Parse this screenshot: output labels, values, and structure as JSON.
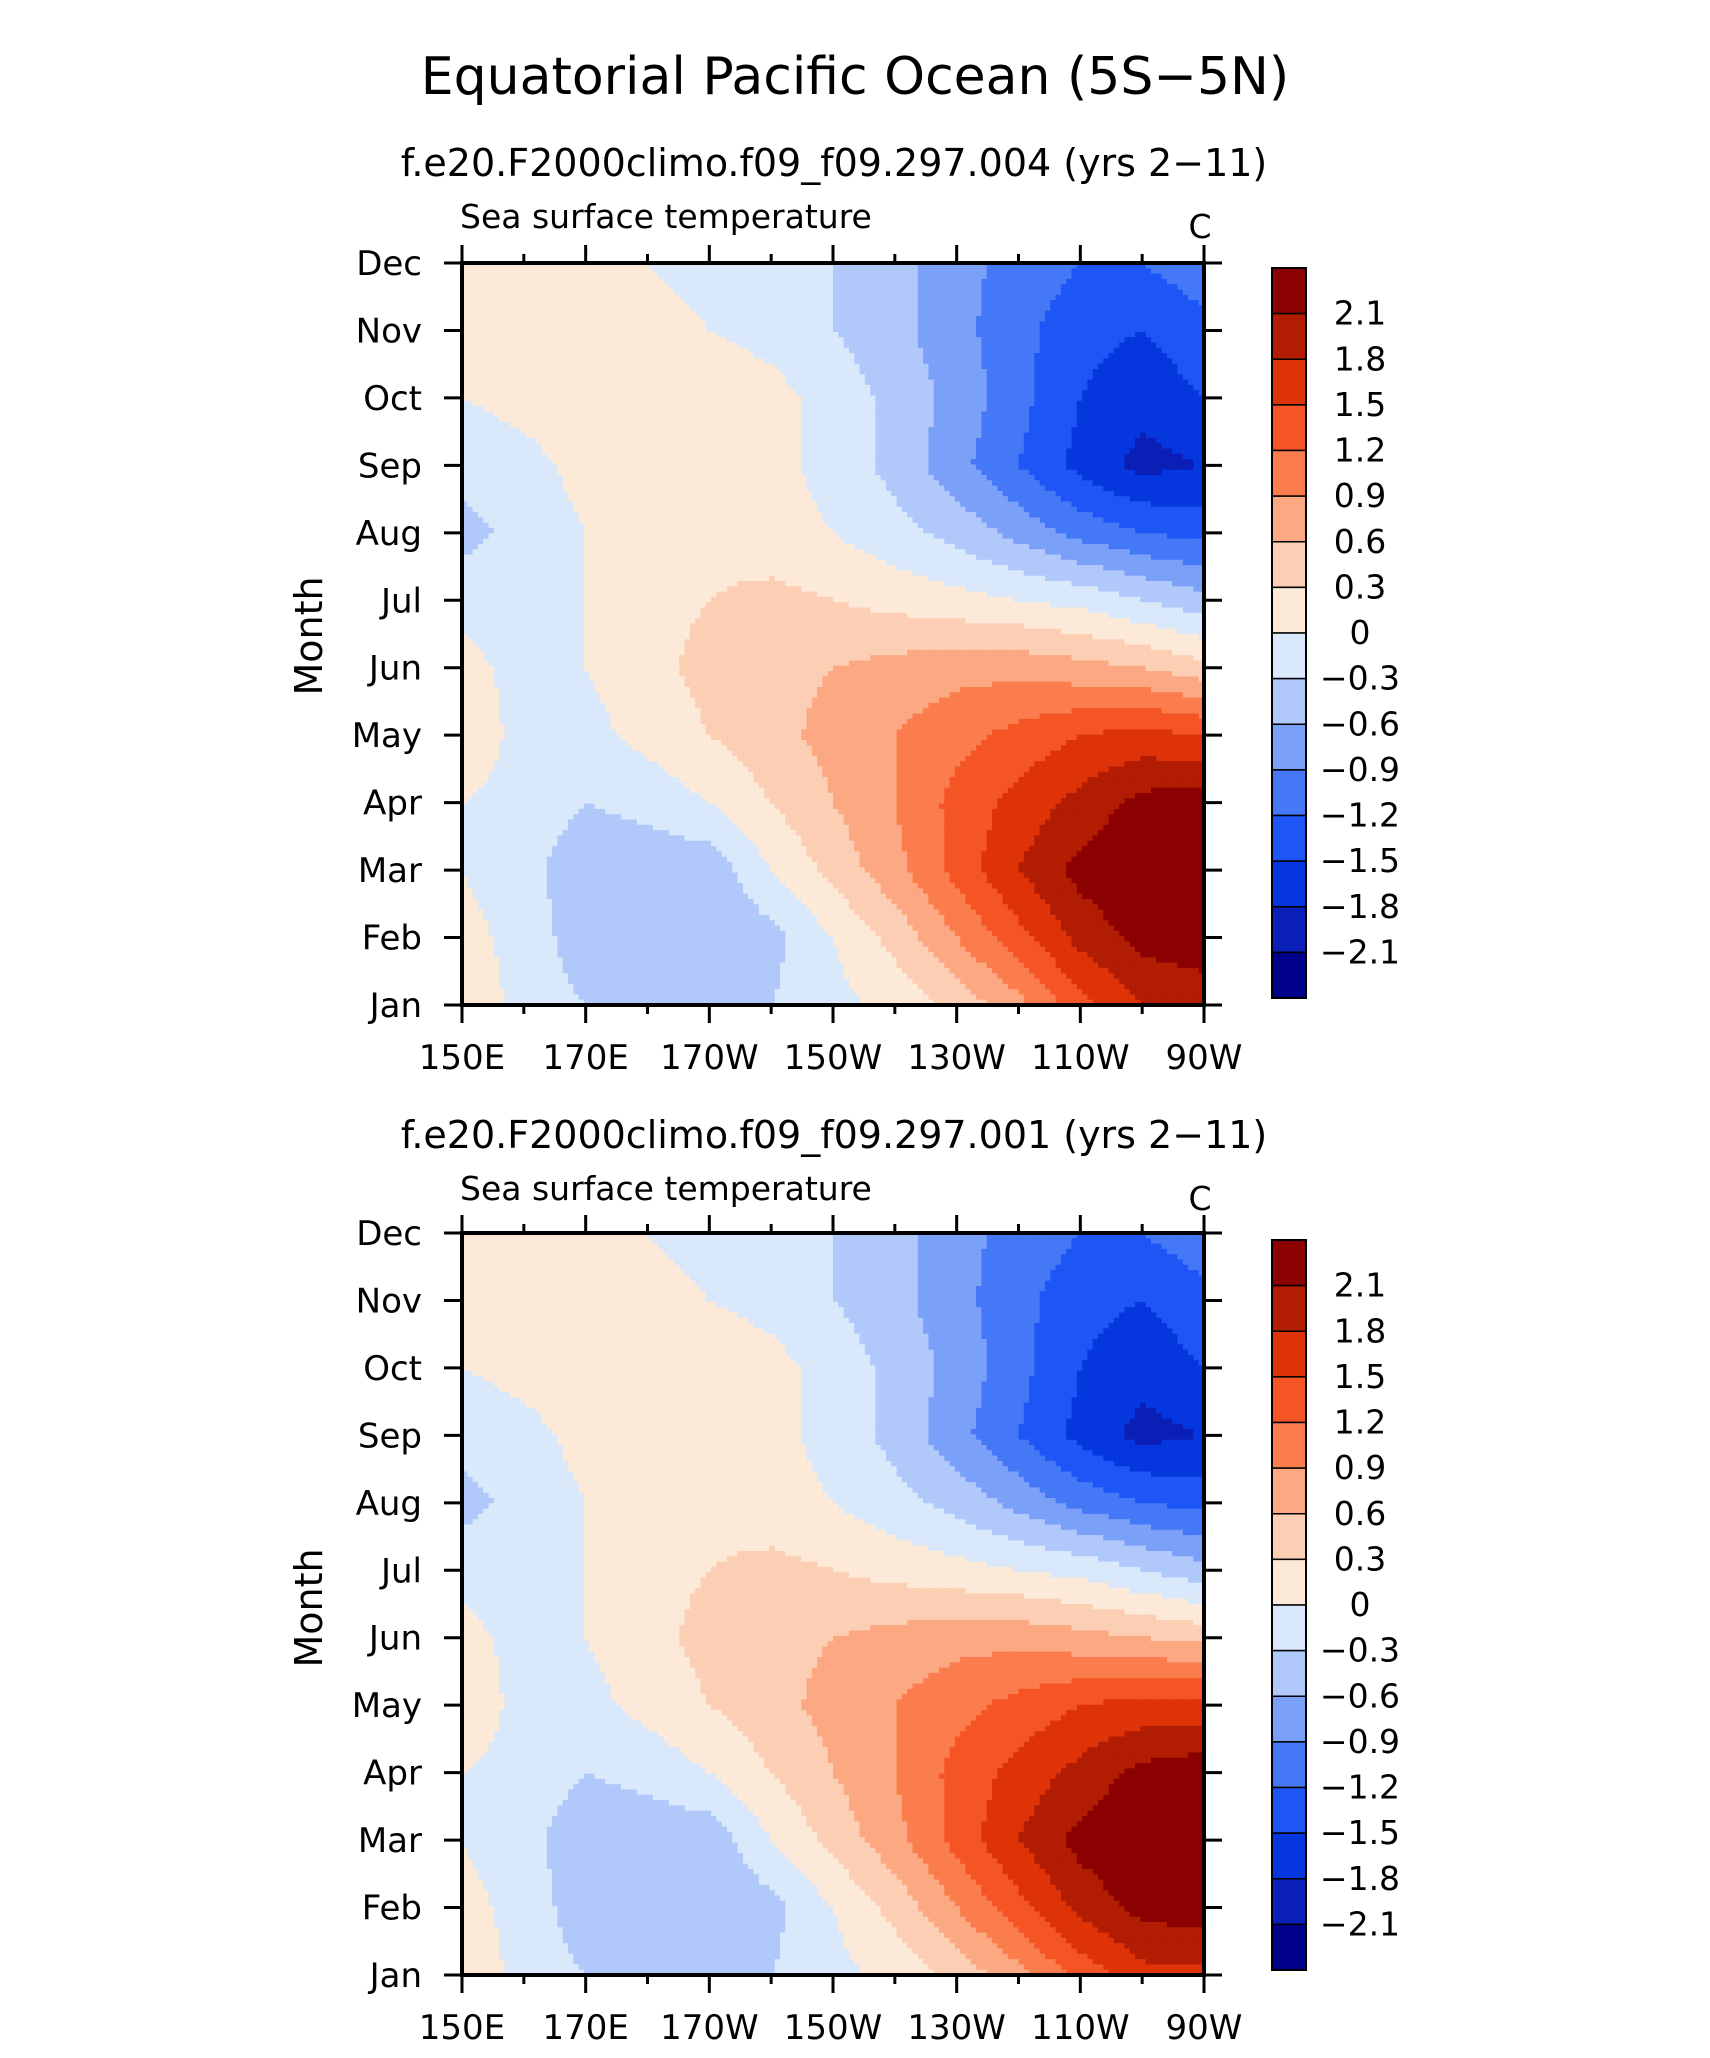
{
  "figure_title": "Equatorial Pacific Ocean (5S-5N)",
  "chart_data": [
    {
      "type": "heatmap",
      "title": "f.e20.F2000climo.f09_f09.297.004 (yrs 2-11)",
      "left_label": "Sea surface temperature",
      "units": "C",
      "ylabel": "Month",
      "xlabel": "",
      "x_ticks": [
        "150E",
        "170E",
        "170W",
        "150W",
        "130W",
        "110W",
        "90W"
      ],
      "x_range_deg_east": [
        150,
        270
      ],
      "y_ticks": [
        "Jan",
        "Feb",
        "Mar",
        "Apr",
        "May",
        "Jun",
        "Jul",
        "Aug",
        "Sep",
        "Oct",
        "Nov",
        "Dec"
      ],
      "contour_levels": [
        -2.1,
        -1.8,
        -1.5,
        -1.2,
        -0.9,
        -0.6,
        -0.3,
        0,
        0.3,
        0.6,
        0.9,
        1.2,
        1.5,
        1.8,
        2.1
      ],
      "colorbar_labels": [
        "2.1",
        "1.8",
        "1.5",
        "1.2",
        "0.9",
        "0.6",
        "0.3",
        "0",
        "-0.3",
        "-0.6",
        "-0.9",
        "-1.2",
        "-1.5",
        "-1.8",
        "-2.1"
      ],
      "grid_x_deg_east": [
        150,
        160,
        170,
        180,
        190,
        200,
        210,
        220,
        230,
        240,
        250,
        260,
        270
      ],
      "grid_months": [
        "Jan",
        "Feb",
        "Mar",
        "Apr",
        "May",
        "Jun",
        "Jul",
        "Aug",
        "Sep",
        "Oct",
        "Nov",
        "Dec"
      ],
      "values": [
        [
          0.2,
          -0.1,
          -0.3,
          -0.4,
          -0.4,
          -0.3,
          -0.1,
          0.1,
          0.4,
          0.8,
          1.4,
          1.8,
          1.8
        ],
        [
          0.1,
          -0.1,
          -0.5,
          -0.5,
          -0.6,
          -0.4,
          0.0,
          0.4,
          0.9,
          1.4,
          1.9,
          2.2,
          2.4
        ],
        [
          0.0,
          -0.2,
          -0.5,
          -0.5,
          -0.5,
          0.0,
          0.4,
          0.8,
          1.3,
          1.8,
          2.2,
          2.4,
          2.5
        ],
        [
          0.0,
          -0.1,
          -0.3,
          -0.2,
          0.0,
          0.3,
          0.6,
          0.9,
          1.3,
          1.6,
          1.9,
          2.2,
          2.3
        ],
        [
          0.2,
          -0.1,
          -0.1,
          0.1,
          0.3,
          0.5,
          0.7,
          0.9,
          1.1,
          1.3,
          1.5,
          1.6,
          1.5
        ],
        [
          0.1,
          -0.1,
          0.0,
          0.2,
          0.4,
          0.5,
          0.6,
          0.7,
          0.8,
          0.8,
          0.7,
          0.6,
          0.4
        ],
        [
          -0.1,
          -0.2,
          0.0,
          0.2,
          0.3,
          0.4,
          0.3,
          0.2,
          0.1,
          0.0,
          -0.1,
          -0.3,
          -0.5
        ],
        [
          -0.4,
          -0.2,
          0.0,
          0.2,
          0.2,
          0.1,
          0.0,
          -0.2,
          -0.4,
          -0.7,
          -1.0,
          -1.2,
          -1.3
        ],
        [
          -0.2,
          -0.1,
          0.1,
          0.2,
          0.2,
          0.1,
          -0.1,
          -0.4,
          -0.8,
          -1.2,
          -1.6,
          -1.9,
          -1.8
        ],
        [
          0.0,
          0.1,
          0.2,
          0.2,
          0.2,
          0.1,
          -0.1,
          -0.4,
          -0.7,
          -1.1,
          -1.5,
          -1.7,
          -1.5
        ],
        [
          0.1,
          0.1,
          0.2,
          0.1,
          0.0,
          -0.1,
          -0.3,
          -0.5,
          -0.8,
          -1.1,
          -1.4,
          -1.5,
          -1.3
        ],
        [
          0.2,
          0.2,
          0.1,
          0.0,
          -0.1,
          -0.2,
          -0.3,
          -0.5,
          -0.8,
          -1.0,
          -1.2,
          -1.2,
          -1.0
        ]
      ]
    },
    {
      "type": "heatmap",
      "title": "f.e20.F2000climo.f09_f09.297.001 (yrs 2-11)",
      "left_label": "Sea surface temperature",
      "units": "C",
      "ylabel": "Month",
      "xlabel": "",
      "x_ticks": [
        "150E",
        "170E",
        "170W",
        "150W",
        "130W",
        "110W",
        "90W"
      ],
      "x_range_deg_east": [
        150,
        270
      ],
      "y_ticks": [
        "Jan",
        "Feb",
        "Mar",
        "Apr",
        "May",
        "Jun",
        "Jul",
        "Aug",
        "Sep",
        "Oct",
        "Nov",
        "Dec"
      ],
      "contour_levels": [
        -2.1,
        -1.8,
        -1.5,
        -1.2,
        -0.9,
        -0.6,
        -0.3,
        0,
        0.3,
        0.6,
        0.9,
        1.2,
        1.5,
        1.8,
        2.1
      ],
      "colorbar_labels": [
        "2.1",
        "1.8",
        "1.5",
        "1.2",
        "0.9",
        "0.6",
        "0.3",
        "0",
        "-0.3",
        "-0.6",
        "-0.9",
        "-1.2",
        "-1.5",
        "-1.8",
        "-2.1"
      ],
      "grid_x_deg_east": [
        150,
        160,
        170,
        180,
        190,
        200,
        210,
        220,
        230,
        240,
        250,
        260,
        270
      ],
      "grid_months": [
        "Jan",
        "Feb",
        "Mar",
        "Apr",
        "May",
        "Jun",
        "Jul",
        "Aug",
        "Sep",
        "Oct",
        "Nov",
        "Dec"
      ],
      "values": [
        [
          0.2,
          -0.1,
          -0.3,
          -0.4,
          -0.4,
          -0.3,
          -0.1,
          0.1,
          0.4,
          0.8,
          1.3,
          1.7,
          1.7
        ],
        [
          0.1,
          -0.1,
          -0.5,
          -0.5,
          -0.6,
          -0.4,
          0.0,
          0.4,
          0.9,
          1.4,
          1.9,
          2.2,
          2.3
        ],
        [
          0.0,
          -0.2,
          -0.5,
          -0.5,
          -0.5,
          0.0,
          0.4,
          0.8,
          1.3,
          1.8,
          2.2,
          2.4,
          2.5
        ],
        [
          0.0,
          -0.1,
          -0.3,
          -0.2,
          0.0,
          0.3,
          0.6,
          0.9,
          1.3,
          1.6,
          1.9,
          2.2,
          2.3
        ],
        [
          0.2,
          -0.1,
          -0.1,
          0.1,
          0.3,
          0.5,
          0.7,
          0.9,
          1.1,
          1.3,
          1.5,
          1.6,
          1.6
        ],
        [
          0.1,
          -0.1,
          0.0,
          0.2,
          0.4,
          0.5,
          0.6,
          0.7,
          0.8,
          0.8,
          0.7,
          0.6,
          0.5
        ],
        [
          -0.1,
          -0.2,
          0.0,
          0.2,
          0.3,
          0.4,
          0.3,
          0.2,
          0.1,
          0.0,
          -0.1,
          -0.3,
          -0.5
        ],
        [
          -0.4,
          -0.2,
          0.0,
          0.2,
          0.2,
          0.1,
          0.0,
          -0.2,
          -0.4,
          -0.7,
          -1.0,
          -1.2,
          -1.3
        ],
        [
          -0.2,
          -0.1,
          0.1,
          0.2,
          0.2,
          0.1,
          -0.1,
          -0.4,
          -0.8,
          -1.2,
          -1.6,
          -1.9,
          -1.8
        ],
        [
          0.0,
          0.1,
          0.2,
          0.2,
          0.2,
          0.1,
          -0.1,
          -0.4,
          -0.7,
          -1.1,
          -1.5,
          -1.7,
          -1.5
        ],
        [
          0.1,
          0.1,
          0.2,
          0.1,
          0.0,
          -0.1,
          -0.3,
          -0.5,
          -0.8,
          -1.1,
          -1.4,
          -1.5,
          -1.3
        ],
        [
          0.2,
          0.2,
          0.1,
          0.0,
          -0.1,
          -0.2,
          -0.3,
          -0.5,
          -0.8,
          -1.0,
          -1.2,
          -1.2,
          -1.0
        ]
      ]
    }
  ],
  "colors": {
    "fills": [
      "#00008b",
      "#0a1fb6",
      "#0536de",
      "#1e55f5",
      "#4478f6",
      "#7aa0f7",
      "#b0c9fa",
      "#d9e8fb",
      "#fde9d8",
      "#fccfb4",
      "#fba883",
      "#fb7c4c",
      "#f55424",
      "#de3208",
      "#b21c02",
      "#8b0000"
    ],
    "axis": "#000000"
  }
}
